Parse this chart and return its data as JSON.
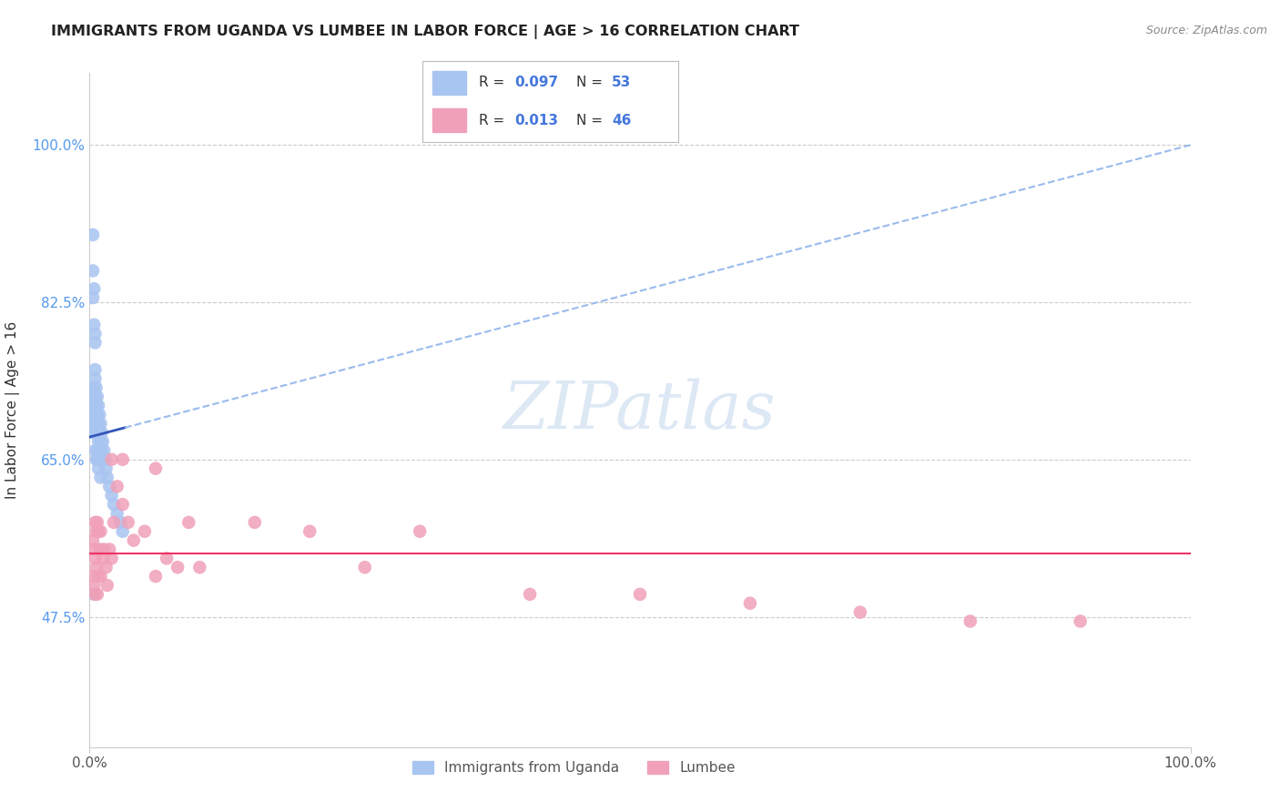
{
  "title": "IMMIGRANTS FROM UGANDA VS LUMBEE IN LABOR FORCE | AGE > 16 CORRELATION CHART",
  "source": "Source: ZipAtlas.com",
  "ylabel": "In Labor Force | Age > 16",
  "xlim": [
    0.0,
    1.0
  ],
  "ylim": [
    0.33,
    1.08
  ],
  "x_tick_labels": [
    "0.0%",
    "100.0%"
  ],
  "y_tick_labels": [
    "47.5%",
    "65.0%",
    "82.5%",
    "100.0%"
  ],
  "y_ticks": [
    0.475,
    0.65,
    0.825,
    1.0
  ],
  "uganda_color": "#a8c4f0",
  "lumbee_color": "#f0a0b8",
  "trend_uganda_solid_color": "#3355bb",
  "trend_uganda_dash_color": "#99bbee",
  "trend_lumbee_color": "#ee3366",
  "background_color": "#ffffff",
  "watermark_color": "#dde8f5",
  "grid_color": "#cccccc",
  "uganda_x": [
    0.003,
    0.003,
    0.003,
    0.004,
    0.004,
    0.004,
    0.005,
    0.005,
    0.005,
    0.005,
    0.005,
    0.006,
    0.006,
    0.006,
    0.007,
    0.007,
    0.007,
    0.007,
    0.008,
    0.008,
    0.008,
    0.009,
    0.009,
    0.009,
    0.01,
    0.01,
    0.011,
    0.011,
    0.012,
    0.013,
    0.014,
    0.015,
    0.016,
    0.018,
    0.02,
    0.022,
    0.025,
    0.028,
    0.03,
    0.003,
    0.003,
    0.004,
    0.004,
    0.005,
    0.005,
    0.006,
    0.007,
    0.008,
    0.009,
    0.01,
    0.003,
    0.004,
    0.005
  ],
  "uganda_y": [
    0.72,
    0.7,
    0.68,
    0.73,
    0.71,
    0.69,
    0.74,
    0.72,
    0.7,
    0.68,
    0.66,
    0.73,
    0.71,
    0.69,
    0.72,
    0.7,
    0.68,
    0.66,
    0.71,
    0.69,
    0.67,
    0.7,
    0.68,
    0.66,
    0.69,
    0.67,
    0.68,
    0.66,
    0.67,
    0.66,
    0.65,
    0.64,
    0.63,
    0.62,
    0.61,
    0.6,
    0.59,
    0.58,
    0.57,
    0.9,
    0.86,
    0.84,
    0.5,
    0.79,
    0.75,
    0.65,
    0.65,
    0.64,
    0.65,
    0.63,
    0.83,
    0.8,
    0.78
  ],
  "lumbee_x": [
    0.003,
    0.003,
    0.004,
    0.004,
    0.005,
    0.005,
    0.005,
    0.006,
    0.006,
    0.007,
    0.007,
    0.008,
    0.008,
    0.009,
    0.01,
    0.01,
    0.012,
    0.013,
    0.015,
    0.016,
    0.018,
    0.02,
    0.022,
    0.025,
    0.03,
    0.035,
    0.04,
    0.05,
    0.06,
    0.07,
    0.08,
    0.09,
    0.1,
    0.15,
    0.2,
    0.25,
    0.3,
    0.4,
    0.5,
    0.6,
    0.7,
    0.8,
    0.9,
    0.02,
    0.03,
    0.06
  ],
  "lumbee_y": [
    0.56,
    0.52,
    0.55,
    0.51,
    0.58,
    0.54,
    0.5,
    0.57,
    0.53,
    0.58,
    0.5,
    0.57,
    0.52,
    0.55,
    0.57,
    0.52,
    0.54,
    0.55,
    0.53,
    0.51,
    0.55,
    0.54,
    0.58,
    0.62,
    0.6,
    0.58,
    0.56,
    0.57,
    0.52,
    0.54,
    0.53,
    0.58,
    0.53,
    0.58,
    0.57,
    0.53,
    0.57,
    0.5,
    0.5,
    0.49,
    0.48,
    0.47,
    0.47,
    0.65,
    0.65,
    0.64
  ],
  "trend_uganda_x0": 0.0,
  "trend_uganda_y0": 0.675,
  "trend_uganda_x1": 1.0,
  "trend_uganda_y1": 1.0,
  "trend_uganda_solid_end": 0.032,
  "trend_lumbee_y": 0.545
}
